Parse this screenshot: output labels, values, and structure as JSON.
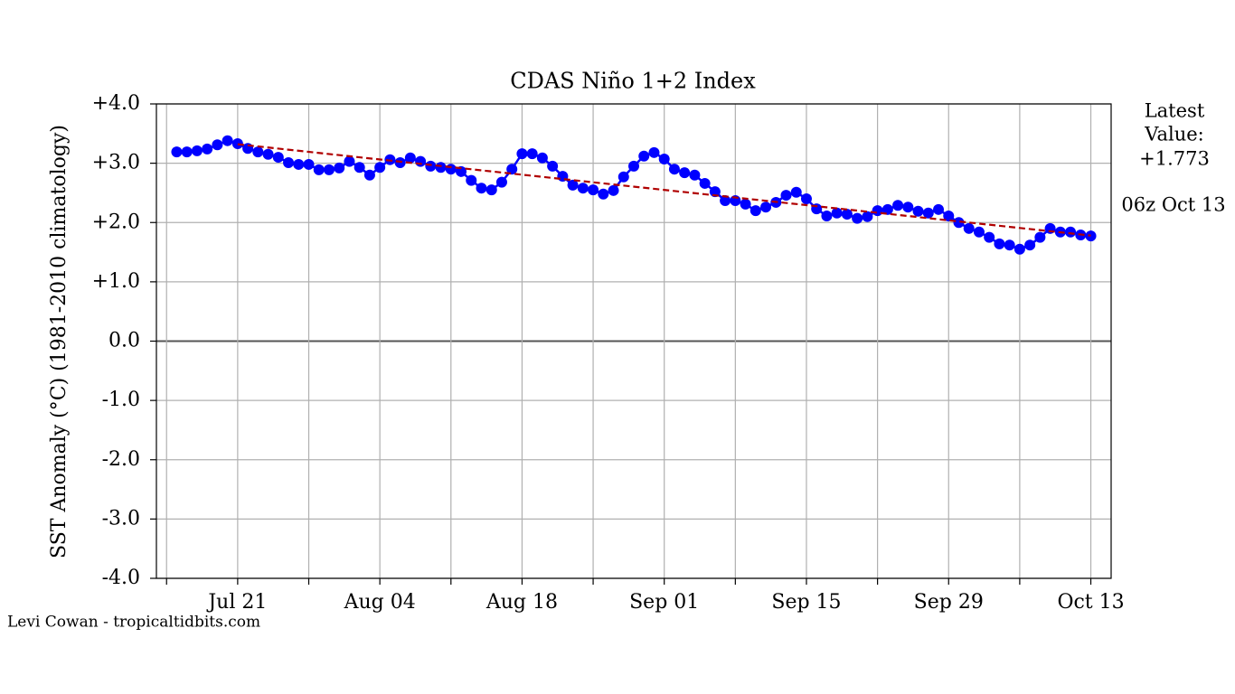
{
  "chart_data": {
    "type": "line",
    "title": "CDAS Niño 1+2 Index",
    "ylabel": "SST Anomaly (°C) (1981-2010 climatology)",
    "series": [
      {
        "color": "#0000ff",
        "marker": "o",
        "x": [
          "Jul 15",
          "Jul 16",
          "Jul 17",
          "Jul 18",
          "Jul 19",
          "Jul 20",
          "Jul 21",
          "Jul 22",
          "Jul 23",
          "Jul 24",
          "Jul 25",
          "Jul 26",
          "Jul 27",
          "Jul 28",
          "Jul 29",
          "Jul 30",
          "Jul 31",
          "Aug 01",
          "Aug 02",
          "Aug 03",
          "Aug 04",
          "Aug 05",
          "Aug 06",
          "Aug 07",
          "Aug 08",
          "Aug 09",
          "Aug 10",
          "Aug 11",
          "Aug 12",
          "Aug 13",
          "Aug 14",
          "Aug 15",
          "Aug 16",
          "Aug 17",
          "Aug 18",
          "Aug 19",
          "Aug 20",
          "Aug 21",
          "Aug 22",
          "Aug 23",
          "Aug 24",
          "Aug 25",
          "Aug 26",
          "Aug 27",
          "Aug 28",
          "Aug 29",
          "Aug 30",
          "Aug 31",
          "Sep 01",
          "Sep 02",
          "Sep 03",
          "Sep 04",
          "Sep 05",
          "Sep 06",
          "Sep 07",
          "Sep 08",
          "Sep 09",
          "Sep 10",
          "Sep 11",
          "Sep 12",
          "Sep 13",
          "Sep 14",
          "Sep 15",
          "Sep 16",
          "Sep 17",
          "Sep 18",
          "Sep 19",
          "Sep 20",
          "Sep 21",
          "Sep 22",
          "Sep 23",
          "Sep 24",
          "Sep 25",
          "Sep 26",
          "Sep 27",
          "Sep 28",
          "Sep 29",
          "Sep 30",
          "Oct 01",
          "Oct 02",
          "Oct 03",
          "Oct 04",
          "Oct 05",
          "Oct 06",
          "Oct 07",
          "Oct 08",
          "Oct 09",
          "Oct 10",
          "Oct 11",
          "Oct 12",
          "Oct 13"
        ],
        "values": [
          3.19,
          3.19,
          3.21,
          3.24,
          3.31,
          3.38,
          3.33,
          3.25,
          3.19,
          3.15,
          3.1,
          3.01,
          2.98,
          2.98,
          2.89,
          2.89,
          2.92,
          3.03,
          2.93,
          2.8,
          2.93,
          3.06,
          3.01,
          3.09,
          3.03,
          2.95,
          2.93,
          2.9,
          2.86,
          2.71,
          2.58,
          2.55,
          2.68,
          2.9,
          3.16,
          3.16,
          3.09,
          2.95,
          2.78,
          2.63,
          2.58,
          2.55,
          2.48,
          2.54,
          2.77,
          2.95,
          3.12,
          3.18,
          3.07,
          2.9,
          2.84,
          2.8,
          2.66,
          2.52,
          2.37,
          2.37,
          2.31,
          2.2,
          2.26,
          2.34,
          2.46,
          2.51,
          2.4,
          2.23,
          2.11,
          2.16,
          2.14,
          2.07,
          2.1,
          2.2,
          2.22,
          2.29,
          2.26,
          2.19,
          2.16,
          2.22,
          2.11,
          2.0,
          1.9,
          1.84,
          1.75,
          1.64,
          1.62,
          1.55,
          1.62,
          1.75,
          1.9,
          1.84,
          1.84,
          1.79,
          1.773
        ]
      }
    ],
    "trend": {
      "color": "#b00000",
      "x": [
        "Jul 21",
        "Oct 13"
      ],
      "values": [
        3.32,
        1.78
      ]
    },
    "xlim": [
      "Jul 13",
      "Oct 15"
    ],
    "xticks": [
      "Jul 21",
      "Aug 04",
      "Aug 18",
      "Sep 01",
      "Sep 15",
      "Sep 29",
      "Oct 13"
    ],
    "xminorticks": [
      "Jul 14",
      "Jul 28",
      "Aug 11",
      "Aug 25",
      "Sep 08",
      "Sep 22",
      "Oct 06"
    ],
    "ylim": [
      -4,
      4
    ],
    "yticks": [
      {
        "value": -4,
        "label": "-4.0"
      },
      {
        "value": -3,
        "label": "-3.0"
      },
      {
        "value": -2,
        "label": "-2.0"
      },
      {
        "value": -1,
        "label": "-1.0"
      },
      {
        "value": 0,
        "label": "0.0"
      },
      {
        "value": 1,
        "label": "+1.0"
      },
      {
        "value": 2,
        "label": "+2.0"
      },
      {
        "value": 3,
        "label": "+3.0"
      },
      {
        "value": 4,
        "label": "+4.0"
      }
    ],
    "grid": true,
    "annotations": {
      "latest": [
        "Latest",
        "Value:",
        "+1.773"
      ],
      "time": "06z Oct 13",
      "credit": "Levi Cowan - tropicaltidbits.com"
    }
  }
}
